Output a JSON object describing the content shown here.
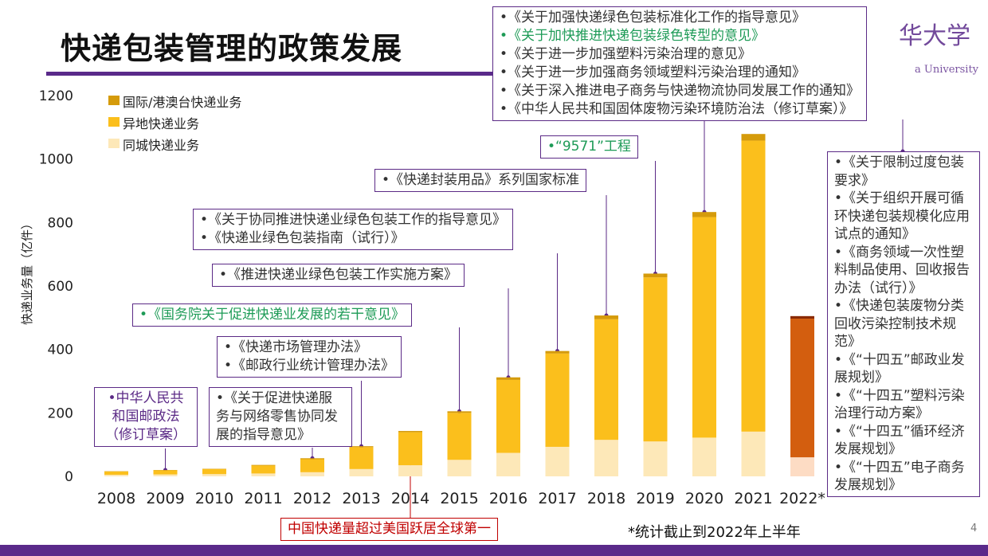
{
  "slide": {
    "title": "快递包装管理的政策发展",
    "logo": "华大学",
    "logo_sub": "a University",
    "page_number": "4",
    "footnote": "*统计截止到2022年上半年"
  },
  "colors": {
    "international": "#d59b0b",
    "intercity": "#fbbf1c",
    "same_city": "#fde8b8",
    "bar_2022_intercity": "#d35e0f",
    "bar_2022_same_city": "#fddcc4",
    "bar_2022_international": "#8a2a04",
    "accent_purple": "#5a2a8a",
    "note_green": "#1e9b57"
  },
  "chart_data": {
    "type": "bar",
    "stacked": true,
    "categories": [
      "2008",
      "2009",
      "2010",
      "2011",
      "2012",
      "2013",
      "2014",
      "2015",
      "2016",
      "2017",
      "2018",
      "2019",
      "2020",
      "2021",
      "2022*"
    ],
    "series": [
      {
        "name": "同城快递业务",
        "values": [
          5,
          6,
          7,
          9,
          13,
          23,
          35,
          52,
          74,
          93,
          115,
          110,
          122,
          141,
          60
        ]
      },
      {
        "name": "异地快递业务",
        "values": [
          10,
          13,
          16,
          25,
          41,
          69,
          104,
          148,
          230,
          294,
          380,
          517,
          695,
          917,
          437
        ]
      },
      {
        "name": "国际/港澳台快递业务",
        "values": [
          1,
          1,
          1,
          2,
          3,
          3,
          4,
          5,
          8,
          8,
          12,
          12,
          16,
          21,
          8
        ]
      }
    ],
    "xlabel": "",
    "ylabel": "快递业务量（亿件）",
    "ylim": [
      0,
      1200
    ],
    "yticks": [
      0,
      200,
      400,
      600,
      800,
      1000,
      1200
    ],
    "legend_position": "top-left",
    "grid": false
  },
  "notes": {
    "n2009": "•中华人民共和国邮政法（修订草案）",
    "n2012": "•《关于促进快递服务与网络零售协同发展的指导意见》",
    "n2013": [
      "•《快递市场管理办法》",
      "•《邮政行业统计管理办法》"
    ],
    "n2014": "中国快递量超过美国跃居全球第一",
    "n2015": "•《国务院关于促进快递业发展的若干意见》",
    "n2016": "•《推进快递业绿色包装工作实施方案》",
    "n2017": [
      "•《关于协同推进快递业绿色包装工作的指导意见》",
      "•《快递业绿色包装指南（试行）》"
    ],
    "n2018": "•《快递封装用品》系列国家标准",
    "n2019": "•“9571”工程",
    "n2020": [
      "•《关于加强快递绿色包装标准化工作的指导意见》",
      "•《关于加快推进快递包装绿色转型的意见》",
      "•《关于进一步加强塑料污染治理的意见》",
      "•《关于进一步加强商务领域塑料污染治理的通知》",
      "•《关于深入推进电子商务与快递物流协同发展工作的通知》",
      "•《中华人民共和国固体废物污染环境防治法（修订草案）》"
    ],
    "n2021": [
      "•《关于限制过度包装要求》",
      "•《关于组织开展可循环快递包装规模化应用试点的通知》",
      "•《商务领域一次性塑料制品使用、回收报告办法（试行）》",
      "•《快递包装废物分类回收污染控制技术规范》",
      "•《“十四五”邮政业发展规划》",
      "•《“十四五”塑料污染治理行动方案》",
      "•《“十四五”循环经济发展规划》",
      "•《“十四五”电子商务发展规划》"
    ]
  }
}
